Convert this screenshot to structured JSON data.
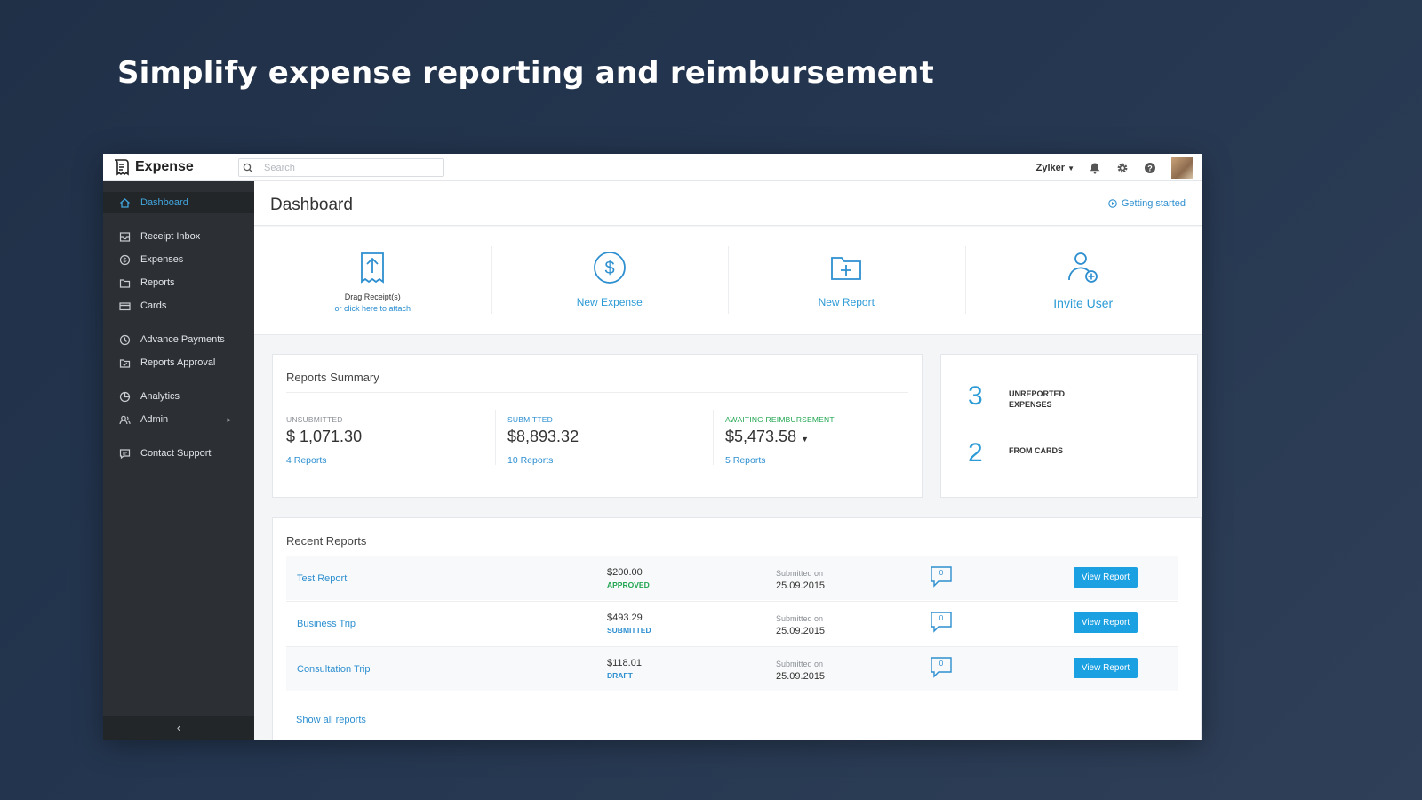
{
  "headline": "Simplify expense reporting and reimbursement",
  "app": {
    "logo_text": "Expense",
    "search_placeholder": "Search",
    "org_name": "Zylker",
    "icons": [
      "bell-icon",
      "gear-icon",
      "help-icon"
    ]
  },
  "sidebar": {
    "items": [
      {
        "label": "Dashboard",
        "icon": "home-icon",
        "active": true
      },
      {
        "label": "Receipt Inbox",
        "icon": "inbox-icon"
      },
      {
        "label": "Expenses",
        "icon": "coin-icon"
      },
      {
        "label": "Reports",
        "icon": "folder-icon"
      },
      {
        "label": "Cards",
        "icon": "card-icon"
      },
      {
        "label": "Advance Payments",
        "icon": "advance-icon"
      },
      {
        "label": "Reports Approval",
        "icon": "approval-icon"
      },
      {
        "label": "Analytics",
        "icon": "pie-icon"
      },
      {
        "label": "Admin",
        "icon": "users-icon",
        "has_submenu": true
      },
      {
        "label": "Contact Support",
        "icon": "chat-icon"
      }
    ],
    "collapse_glyph": "‹"
  },
  "main": {
    "title": "Dashboard",
    "getting_started": "Getting started",
    "actions": {
      "drag_label": "Drag Receipt(s)",
      "drag_sub": "or click here to attach",
      "new_expense": "New Expense",
      "new_report": "New Report",
      "invite_user": "Invite User"
    },
    "summary": {
      "title": "Reports Summary",
      "unsubmitted": {
        "label": "UNSUBMITTED",
        "amount": "$ 1,071.30",
        "link": "4 Reports"
      },
      "submitted": {
        "label": "SUBMITTED",
        "amount": "$8,893.32",
        "link": "10 Reports"
      },
      "awaiting": {
        "label": "AWAITING REIMBURSEMENT",
        "amount": "$5,473.58",
        "link": "5 Reports"
      }
    },
    "side": {
      "unreported_count": "3",
      "unreported_label_1": "UNREPORTED",
      "unreported_label_2": "EXPENSES",
      "cards_count": "2",
      "cards_label": "FROM CARDS"
    },
    "recent": {
      "title": "Recent Reports",
      "submitted_on_label": "Submitted on",
      "view_label": "View Report",
      "rows": [
        {
          "name": "Test Report",
          "amount": "$200.00",
          "status": "APPROVED",
          "status_color": "#22a652",
          "date": "25.09.2015",
          "comments": "0"
        },
        {
          "name": "Business Trip",
          "amount": "$493.29",
          "status": "SUBMITTED",
          "status_color": "#2d8fd0",
          "date": "25.09.2015",
          "comments": "0"
        },
        {
          "name": "Consultation Trip",
          "amount": "$118.01",
          "status": "DRAFT",
          "status_color": "#2d8fd0",
          "date": "25.09.2015",
          "comments": "0"
        }
      ],
      "show_all": "Show all reports"
    }
  }
}
